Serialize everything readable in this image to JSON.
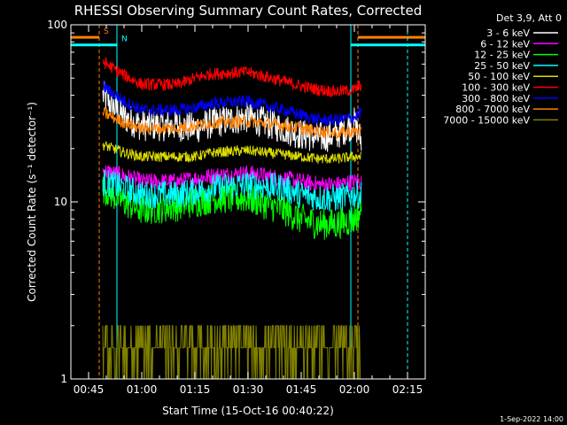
{
  "chart_data": {
    "type": "line",
    "title": "RHESSI Observing Summary Count Rates, Corrected",
    "xlabel": "Start Time (15-Oct-16 00:40:22)",
    "ylabel": "Corrected Count Rate (s⁻¹ detector⁻¹)",
    "y_scale": "log",
    "ylim": [
      1,
      100
    ],
    "xlim": [
      "00:40",
      "02:20"
    ],
    "x_ticks": [
      "00:45",
      "01:00",
      "01:15",
      "01:30",
      "01:45",
      "02:00",
      "02:15"
    ],
    "y_ticks": [
      "1",
      "10",
      "100"
    ],
    "legend_header": "Det 3,9, Att 0",
    "legend_position": "right",
    "data_window": [
      "00:49",
      "02:02"
    ],
    "series": [
      {
        "name": "3 - 6 keV",
        "color": "#ffffff",
        "x": [
          "00:49",
          "00:55",
          "01:00",
          "01:10",
          "01:15",
          "01:20",
          "01:30",
          "01:40",
          "01:45",
          "01:50",
          "01:55",
          "02:00",
          "02:02"
        ],
        "y": [
          40,
          30,
          27,
          27,
          26,
          28,
          30,
          26,
          24,
          23,
          24,
          28,
          22
        ]
      },
      {
        "name": "6 - 12 keV",
        "color": "#ff00ff",
        "x": [
          "00:49",
          "00:55",
          "01:00",
          "01:10",
          "01:15",
          "01:20",
          "01:30",
          "01:40",
          "01:45",
          "01:50",
          "01:55",
          "02:00",
          "02:02"
        ],
        "y": [
          15,
          14,
          13,
          13,
          13.5,
          14,
          14.5,
          13.5,
          13,
          12.5,
          12.5,
          13,
          13
        ]
      },
      {
        "name": "12 - 25 keV",
        "color": "#00ff00",
        "x": [
          "00:49",
          "00:55",
          "01:00",
          "01:10",
          "01:15",
          "01:20",
          "01:30",
          "01:40",
          "01:45",
          "01:50",
          "01:55",
          "02:00",
          "02:02"
        ],
        "y": [
          12,
          10,
          9,
          9.5,
          10,
          10.5,
          10.5,
          9,
          8,
          7.5,
          7.5,
          8,
          9
        ]
      },
      {
        "name": "25 - 50 keV",
        "color": "#00ffff",
        "x": [
          "00:49",
          "00:55",
          "01:00",
          "01:10",
          "01:15",
          "01:20",
          "01:30",
          "01:40",
          "01:45",
          "01:50",
          "01:55",
          "02:00",
          "02:02"
        ],
        "y": [
          13,
          12,
          11,
          11,
          11.5,
          12,
          12.5,
          12,
          11,
          10.5,
          10.5,
          11,
          11
        ]
      },
      {
        "name": "50 - 100 keV",
        "color": "#dddd00",
        "x": [
          "00:49",
          "00:55",
          "01:00",
          "01:10",
          "01:15",
          "01:20",
          "01:30",
          "01:40",
          "01:45",
          "01:50",
          "01:55",
          "02:00",
          "02:02"
        ],
        "y": [
          21,
          19,
          18,
          18,
          18,
          19,
          19.5,
          18.5,
          18,
          17.5,
          17.5,
          18,
          18
        ]
      },
      {
        "name": "100 - 300 keV",
        "color": "#ff0000",
        "x": [
          "00:49",
          "00:55",
          "01:00",
          "01:10",
          "01:15",
          "01:20",
          "01:30",
          "01:40",
          "01:45",
          "01:50",
          "01:55",
          "02:00",
          "02:02"
        ],
        "y": [
          62,
          52,
          46,
          46,
          50,
          53,
          54,
          48,
          45,
          43,
          42,
          43,
          46
        ]
      },
      {
        "name": "300 - 800 keV",
        "color": "#0000ff",
        "x": [
          "00:49",
          "00:55",
          "01:00",
          "01:10",
          "01:15",
          "01:20",
          "01:30",
          "01:40",
          "01:45",
          "01:50",
          "01:55",
          "02:00",
          "02:02"
        ],
        "y": [
          45,
          37,
          33,
          33,
          34,
          36,
          37,
          33,
          31,
          29,
          29,
          30,
          32
        ]
      },
      {
        "name": "800 - 7000 keV",
        "color": "#ff8000",
        "x": [
          "00:49",
          "00:55",
          "01:00",
          "01:10",
          "01:15",
          "01:20",
          "01:30",
          "01:40",
          "01:45",
          "01:50",
          "01:55",
          "02:00",
          "02:02"
        ],
        "y": [
          32,
          28,
          26,
          26,
          27,
          28,
          28.5,
          27,
          26,
          25,
          24.5,
          25,
          25
        ]
      },
      {
        "name": "7000 - 15000 keV",
        "color": "#808000",
        "x": [
          "00:49",
          "00:55",
          "01:00",
          "01:10",
          "01:15",
          "01:20",
          "01:30",
          "01:40",
          "01:45",
          "01:50",
          "01:55",
          "02:00",
          "02:02"
        ],
        "y": [
          2,
          2,
          1.7,
          1.6,
          1.8,
          2,
          2,
          1.9,
          1.9,
          1.8,
          1.8,
          1.7,
          1.7
        ]
      }
    ],
    "flags": [
      {
        "label": "S",
        "color": "#ff8000",
        "y": 85,
        "x": [
          "00:40",
          "00:48",
          "02:01",
          "02:20"
        ],
        "markers": [
          "00:48",
          "02:01",
          "02:15"
        ]
      },
      {
        "label": "N",
        "color": "#00ffff",
        "y": 77,
        "x": [
          "00:40",
          "00:53",
          "01:59",
          "02:20"
        ],
        "markers": [
          "00:40",
          "00:53",
          "01:59",
          "02:15"
        ]
      }
    ]
  },
  "footer_date": "1-Sep-2022 14:00"
}
